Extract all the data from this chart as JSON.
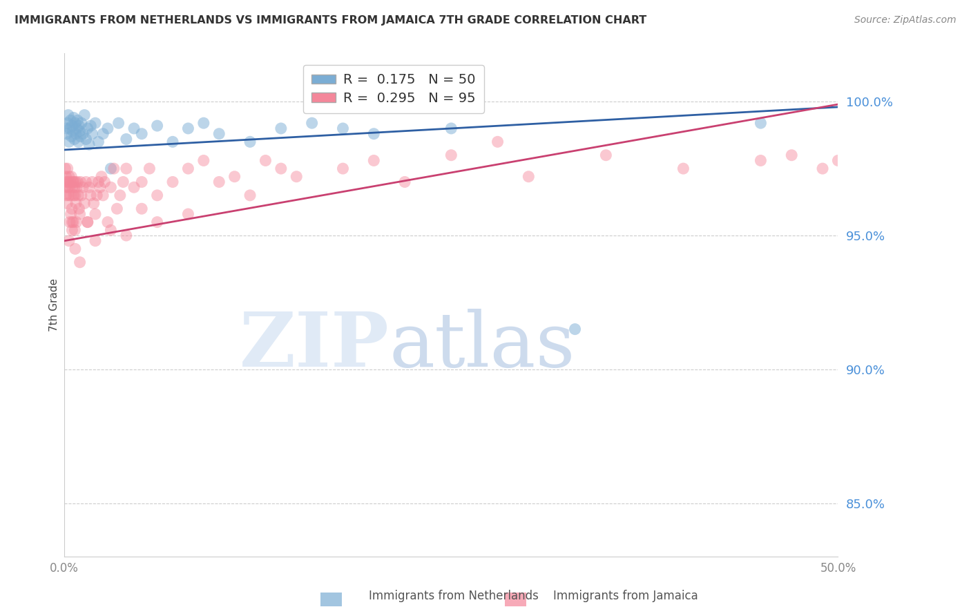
{
  "title": "IMMIGRANTS FROM NETHERLANDS VS IMMIGRANTS FROM JAMAICA 7TH GRADE CORRELATION CHART",
  "source": "Source: ZipAtlas.com",
  "ylabel": "7th Grade",
  "yticks": [
    85.0,
    90.0,
    95.0,
    100.0
  ],
  "ytick_labels": [
    "85.0%",
    "90.0%",
    "95.0%",
    "100.0%"
  ],
  "xlim": [
    0.0,
    50.0
  ],
  "ylim": [
    83.0,
    101.8
  ],
  "blue_R": 0.175,
  "blue_N": 50,
  "pink_R": 0.295,
  "pink_N": 95,
  "blue_color": "#7BADD4",
  "pink_color": "#F4879A",
  "blue_line_color": "#2E5FA3",
  "pink_line_color": "#C94070",
  "legend_label_blue": "Immigrants from Netherlands",
  "legend_label_pink": "Immigrants from Jamaica",
  "blue_line_x0": 0.0,
  "blue_line_y0": 98.2,
  "blue_line_x1": 50.0,
  "blue_line_y1": 99.8,
  "pink_line_x0": 0.0,
  "pink_line_y0": 94.8,
  "pink_line_x1": 50.0,
  "pink_line_y1": 99.9,
  "blue_scatter_x": [
    0.1,
    0.15,
    0.2,
    0.25,
    0.3,
    0.35,
    0.4,
    0.45,
    0.5,
    0.55,
    0.6,
    0.65,
    0.7,
    0.75,
    0.8,
    0.85,
    0.9,
    0.95,
    1.0,
    1.05,
    1.1,
    1.2,
    1.3,
    1.4,
    1.5,
    1.6,
    1.7,
    1.8,
    2.0,
    2.2,
    2.5,
    2.8,
    3.0,
    3.5,
    4.0,
    4.5,
    5.0,
    6.0,
    7.0,
    8.0,
    9.0,
    10.0,
    12.0,
    14.0,
    16.0,
    18.0,
    20.0,
    25.0,
    33.0,
    45.0
  ],
  "blue_scatter_y": [
    99.0,
    98.8,
    99.2,
    99.5,
    98.5,
    99.0,
    99.3,
    98.7,
    99.1,
    98.9,
    99.4,
    98.6,
    99.2,
    98.8,
    99.0,
    99.3,
    98.5,
    99.1,
    98.9,
    98.7,
    99.2,
    98.8,
    99.5,
    98.6,
    99.0,
    98.4,
    99.1,
    98.8,
    99.2,
    98.5,
    98.8,
    99.0,
    97.5,
    99.2,
    98.6,
    99.0,
    98.8,
    99.1,
    98.5,
    99.0,
    99.2,
    98.8,
    98.5,
    99.0,
    99.2,
    99.0,
    98.8,
    99.0,
    91.5,
    99.2
  ],
  "pink_scatter_x": [
    0.05,
    0.08,
    0.1,
    0.12,
    0.15,
    0.18,
    0.2,
    0.22,
    0.25,
    0.28,
    0.3,
    0.32,
    0.35,
    0.38,
    0.4,
    0.42,
    0.45,
    0.48,
    0.5,
    0.52,
    0.55,
    0.58,
    0.6,
    0.62,
    0.65,
    0.68,
    0.7,
    0.72,
    0.75,
    0.78,
    0.8,
    0.85,
    0.9,
    0.95,
    1.0,
    1.05,
    1.1,
    1.2,
    1.3,
    1.4,
    1.5,
    1.6,
    1.7,
    1.8,
    1.9,
    2.0,
    2.1,
    2.2,
    2.3,
    2.4,
    2.5,
    2.6,
    2.8,
    3.0,
    3.2,
    3.4,
    3.6,
    3.8,
    4.0,
    4.5,
    5.0,
    5.5,
    6.0,
    7.0,
    8.0,
    9.0,
    10.0,
    11.0,
    12.0,
    13.0,
    14.0,
    15.0,
    18.0,
    20.0,
    22.0,
    25.0,
    28.0,
    30.0,
    35.0,
    40.0,
    45.0,
    47.0,
    49.0,
    50.0,
    0.3,
    0.5,
    0.7,
    1.0,
    1.5,
    2.0,
    3.0,
    4.0,
    5.0,
    6.0,
    8.0
  ],
  "pink_scatter_y": [
    97.5,
    96.8,
    97.2,
    96.5,
    97.0,
    96.2,
    97.5,
    96.8,
    97.0,
    96.5,
    97.2,
    96.8,
    95.5,
    97.0,
    96.5,
    95.8,
    97.2,
    96.0,
    95.5,
    96.8,
    97.0,
    95.5,
    96.5,
    97.0,
    96.8,
    95.2,
    96.5,
    97.0,
    96.2,
    95.5,
    96.8,
    97.0,
    96.5,
    96.0,
    95.8,
    97.0,
    96.5,
    96.8,
    96.2,
    97.0,
    95.5,
    96.8,
    96.5,
    97.0,
    96.2,
    95.8,
    96.5,
    97.0,
    96.8,
    97.2,
    96.5,
    97.0,
    95.5,
    96.8,
    97.5,
    96.0,
    96.5,
    97.0,
    97.5,
    96.8,
    97.0,
    97.5,
    96.5,
    97.0,
    97.5,
    97.8,
    97.0,
    97.2,
    96.5,
    97.8,
    97.5,
    97.2,
    97.5,
    97.8,
    97.0,
    98.0,
    98.5,
    97.2,
    98.0,
    97.5,
    97.8,
    98.0,
    97.5,
    97.8,
    94.8,
    95.2,
    94.5,
    94.0,
    95.5,
    94.8,
    95.2,
    95.0,
    96.0,
    95.5,
    95.8
  ]
}
